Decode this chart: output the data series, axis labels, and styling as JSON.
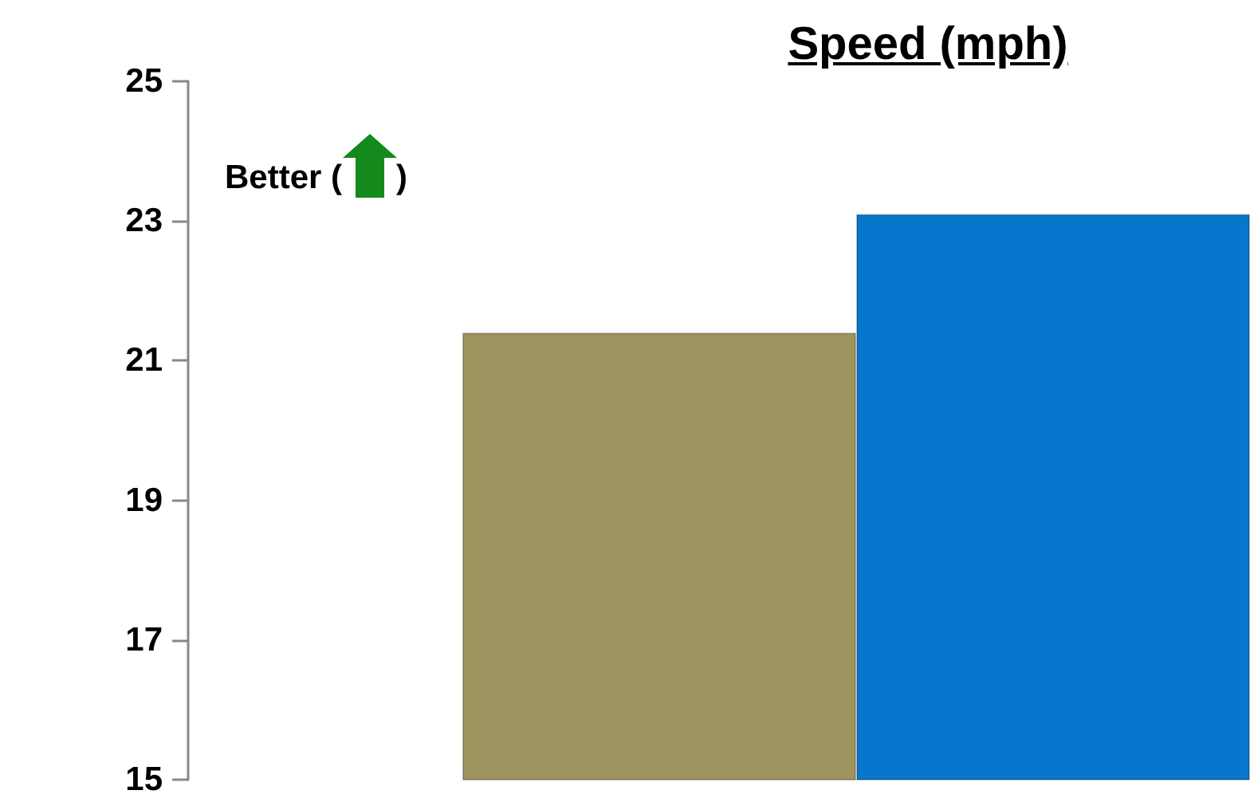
{
  "chart_data": {
    "type": "bar",
    "title": "Speed (mph)",
    "categories": [
      null,
      null
    ],
    "colors": [
      "#a09560",
      "#0677cc"
    ],
    "values": [
      21.4,
      23.1
    ],
    "ylim": [
      15,
      25
    ],
    "yticks": [
      15,
      17,
      19,
      21,
      23,
      25
    ],
    "grid": false,
    "annotations": [
      "Better ( )"
    ]
  }
}
